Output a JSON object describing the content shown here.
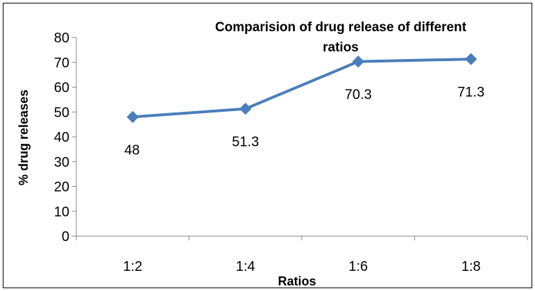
{
  "chart_data": {
    "type": "line",
    "title_lines": [
      "Comparision of drug release of different",
      "ratios"
    ],
    "xlabel": "Ratios",
    "ylabel": "% drug releases",
    "categories": [
      "1:2",
      "1:4",
      "1:6",
      "1:8"
    ],
    "series": [
      {
        "values": [
          48,
          51.3,
          70.3,
          71.3
        ],
        "color": "#4a7ebb"
      }
    ],
    "data_labels": [
      "48",
      "51.3",
      "70.3",
      "71.3"
    ],
    "ylim": [
      0,
      80
    ],
    "yticks": [
      "0",
      "10",
      "20",
      "30",
      "40",
      "50",
      "60",
      "70",
      "80"
    ],
    "grid": false,
    "legend": "none"
  }
}
